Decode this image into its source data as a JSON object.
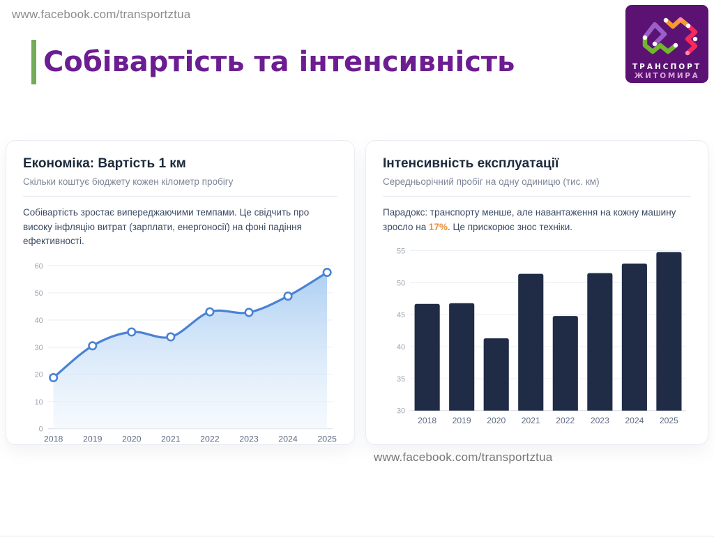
{
  "page": {
    "top_url": "www.facebook.com/transportztua",
    "bottom_url": "www.facebook.com/transportztua",
    "title": "Собівартість та інтенсивність",
    "title_color": "#6c1d91",
    "accent_bar_color": "#72ac58"
  },
  "logo": {
    "line1": "ТРАНСПОРТ",
    "line2": "ЖИТОМИРА",
    "bg_color": "#5b1273",
    "colors": {
      "violet": "#9a5fc9",
      "orange": "#f49b2a",
      "green": "#71b62d",
      "red": "#f52a5c",
      "dot_pink": "#ff86b8"
    }
  },
  "cards": {
    "left": {
      "title": "Економіка: Вартість 1 км",
      "subtitle": "Скільки коштує бюджету кожен кілометр пробігу",
      "description": "Собівартість зростає випереджаючими темпами. Це свідчить про високу інфляцію витрат (зарплати, енергоносії) на фоні падіння ефективності."
    },
    "right": {
      "title": "Інтенсивність експлуатації",
      "subtitle": "Середньорічний пробіг на одну одиницю (тис. км)",
      "description_before": "Парадокс: транспорту менше, але навантаження на кожну машину зросло на ",
      "description_highlight": "17%",
      "description_after": ". Це прискорює знос техніки.",
      "highlight_color": "#e8923d"
    }
  },
  "chart_data": [
    {
      "type": "area",
      "title": "Економіка: Вартість 1 км",
      "subtitle": "Скільки коштує бюджету кожен кілометр пробігу",
      "categories": [
        "2018",
        "2019",
        "2020",
        "2021",
        "2022",
        "2023",
        "2024",
        "2025"
      ],
      "values": [
        18.8,
        30.5,
        35.6,
        33.8,
        43.0,
        42.8,
        48.8,
        57.5
      ],
      "xlabel": "",
      "ylabel": "",
      "ylim": [
        0,
        60
      ],
      "yticks": [
        0,
        10,
        20,
        30,
        40,
        50,
        60
      ],
      "grid": true,
      "legend": false,
      "line_color": "#4a82d4",
      "fill_top": "#a9cdf2",
      "fill_bottom": "#eef5fd",
      "marker": "white-circle"
    },
    {
      "type": "bar",
      "title": "Інтенсивність експлуатації",
      "subtitle": "Середньорічний пробіг на одну одиницю (тис. км)",
      "categories": [
        "2018",
        "2019",
        "2020",
        "2021",
        "2022",
        "2023",
        "2024",
        "2025"
      ],
      "values": [
        46.7,
        46.8,
        41.3,
        51.4,
        44.8,
        51.5,
        53.0,
        54.8
      ],
      "xlabel": "",
      "ylabel": "",
      "ylim": [
        30,
        55
      ],
      "yticks": [
        30,
        35,
        40,
        45,
        50,
        55
      ],
      "grid": true,
      "legend": false,
      "bar_color": "#202c46"
    }
  ]
}
